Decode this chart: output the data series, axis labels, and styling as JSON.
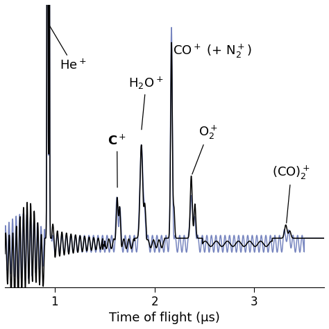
{
  "xlim": [
    0.5,
    3.7
  ],
  "ylim": [
    -0.22,
    1.05
  ],
  "xlabel": "Time of flight (μs)",
  "xlabel_fontsize": 13,
  "tick_fontsize": 12,
  "black_color": "#000000",
  "blue_color": "#6878b8",
  "baseline": 0.0,
  "he_peak_black": 3.5,
  "he_peak_blue": 3.5,
  "co_peak_black": 0.88,
  "co_peak_blue": 0.96,
  "h2o_peak_black": 0.42,
  "h2o_peak_blue": 0.48,
  "c_peak_black": 0.22,
  "o2_peak_black": 0.28,
  "co2_peak_black": 0.06
}
